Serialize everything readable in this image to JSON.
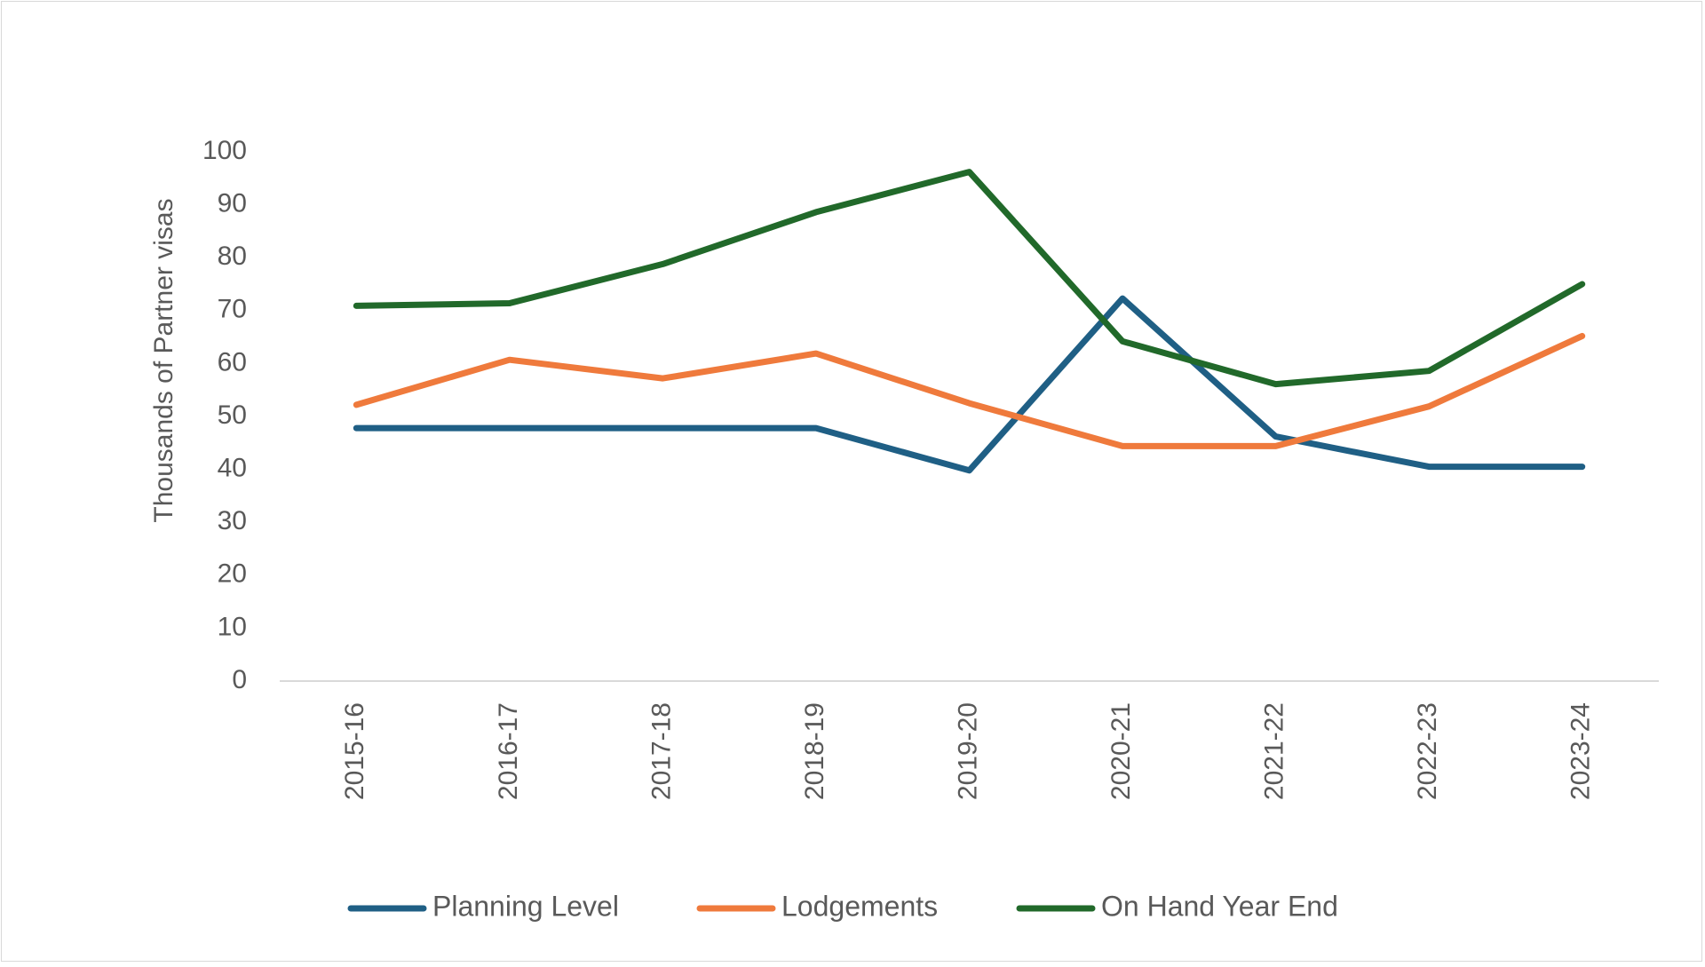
{
  "chart_data": {
    "type": "line",
    "title": "",
    "xlabel": "",
    "ylabel": "Thousands of Partner visas",
    "ylim": [
      0,
      100
    ],
    "yticks": [
      0,
      10,
      20,
      30,
      40,
      50,
      60,
      70,
      80,
      90,
      100
    ],
    "categories": [
      "2015-16",
      "2016-17",
      "2017-18",
      "2018-19",
      "2019-20",
      "2020-21",
      "2021-22",
      "2022-23",
      "2023-24"
    ],
    "gridlines": false,
    "legend_position": "bottom",
    "series": [
      {
        "name": "Planning Level",
        "color": "#1f5f85",
        "values": [
          47.8,
          47.8,
          47.8,
          47.8,
          39.8,
          72.3,
          46.2,
          40.5,
          40.5
        ]
      },
      {
        "name": "Lodgements",
        "color": "#ef7a3c",
        "values": [
          52.2,
          60.7,
          57.2,
          61.9,
          52.5,
          44.4,
          44.4,
          51.9,
          65.2
        ]
      },
      {
        "name": "On Hand Year End",
        "color": "#21692a",
        "values": [
          70.9,
          71.4,
          78.8,
          88.6,
          96.2,
          64.2,
          56.1,
          58.6,
          75.0
        ]
      }
    ]
  }
}
